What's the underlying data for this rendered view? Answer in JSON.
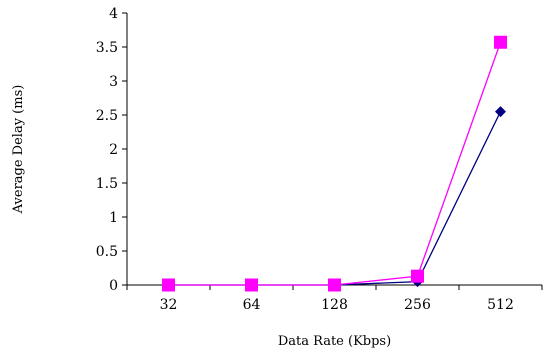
{
  "chart_data": {
    "type": "line",
    "xlabel": "Data Rate (Kbps)",
    "ylabel": "Average Delay (ms)",
    "categories": [
      "32",
      "64",
      "128",
      "256",
      "512"
    ],
    "ylim": [
      0,
      4
    ],
    "y_ticks": [
      "0",
      "0.5",
      "1",
      "1.5",
      "2",
      "2.5",
      "3",
      "3.5",
      "4"
    ],
    "grid": false,
    "legend": "none",
    "series": [
      {
        "marker": "diamond",
        "color": "#000080",
        "values": [
          0.0,
          0.0,
          0.0,
          0.05,
          2.55
        ]
      },
      {
        "marker": "square",
        "color": "#ff00ff",
        "values": [
          0.0,
          0.0,
          0.0,
          0.13,
          3.57
        ]
      }
    ]
  }
}
